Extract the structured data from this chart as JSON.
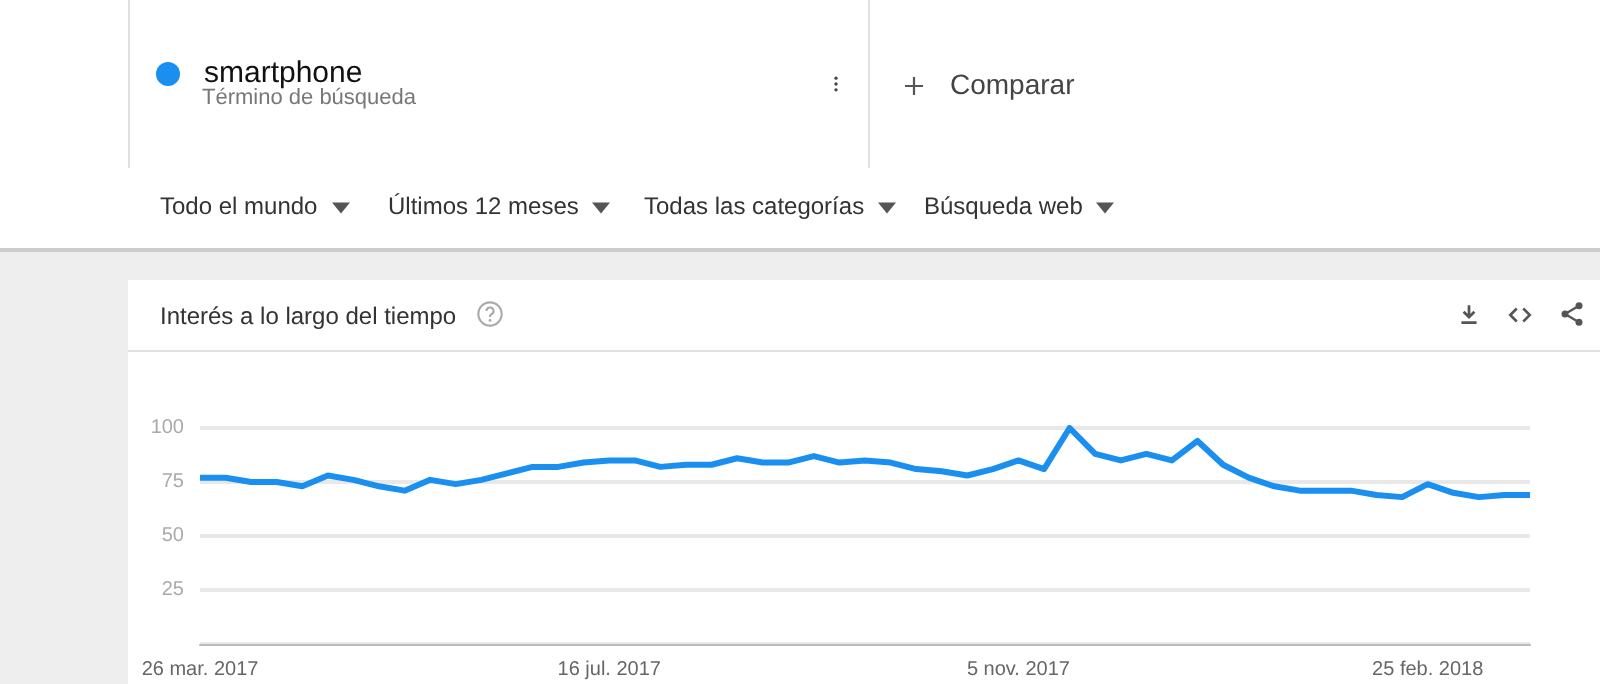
{
  "chart_data": {
    "type": "line",
    "title": "Interés a lo largo del tiempo",
    "annotations": [
      "Término de búsqueda",
      "Comparar",
      "Todo el mundo",
      "Últimos 12 meses",
      "Todas las categorías",
      "Búsqueda web"
    ],
    "x": [
      "2017-03-26",
      "2017-04-02",
      "2017-04-09",
      "2017-04-16",
      "2017-04-23",
      "2017-04-30",
      "2017-05-07",
      "2017-05-14",
      "2017-05-21",
      "2017-05-28",
      "2017-06-04",
      "2017-06-11",
      "2017-06-18",
      "2017-06-25",
      "2017-07-02",
      "2017-07-09",
      "2017-07-16",
      "2017-07-23",
      "2017-07-30",
      "2017-08-06",
      "2017-08-13",
      "2017-08-20",
      "2017-08-27",
      "2017-09-03",
      "2017-09-10",
      "2017-09-17",
      "2017-09-24",
      "2017-10-01",
      "2017-10-08",
      "2017-10-15",
      "2017-10-22",
      "2017-10-29",
      "2017-11-05",
      "2017-11-12",
      "2017-11-19",
      "2017-11-26",
      "2017-12-03",
      "2017-12-10",
      "2017-12-17",
      "2017-12-24",
      "2017-12-31",
      "2018-01-07",
      "2018-01-14",
      "2018-01-21",
      "2018-01-28",
      "2018-02-04",
      "2018-02-11",
      "2018-02-18",
      "2018-02-25",
      "2018-03-04",
      "2018-03-11",
      "2018-03-18",
      "2018-03-25"
    ],
    "series": [
      {
        "name": "smartphone",
        "color": "#1a8ff0",
        "values": [
          77,
          77,
          75,
          75,
          73,
          78,
          76,
          73,
          71,
          76,
          74,
          76,
          79,
          82,
          82,
          84,
          85,
          85,
          82,
          83,
          83,
          86,
          84,
          84,
          87,
          84,
          85,
          84,
          81,
          80,
          78,
          81,
          85,
          81,
          100,
          88,
          85,
          88,
          85,
          94,
          83,
          77,
          73,
          71,
          71,
          71,
          69,
          68,
          74,
          70,
          68,
          69,
          69
        ]
      }
    ],
    "xlim": [
      "2017-03-26",
      "2018-03-25"
    ],
    "xticks": [
      {
        "value": "2017-03-26",
        "label": "26 mar. 2017"
      },
      {
        "value": "2017-07-16",
        "label": "16 jul. 2017"
      },
      {
        "value": "2017-11-05",
        "label": "5 nov. 2017"
      },
      {
        "value": "2018-02-25",
        "label": "25 feb. 2018"
      }
    ],
    "ylim": [
      0,
      100
    ],
    "yticks": [
      {
        "value": 0,
        "label": null
      },
      25,
      50,
      75,
      100
    ],
    "grid": "y",
    "legend": "top left",
    "marker": "none",
    "line_style": "solid"
  }
}
